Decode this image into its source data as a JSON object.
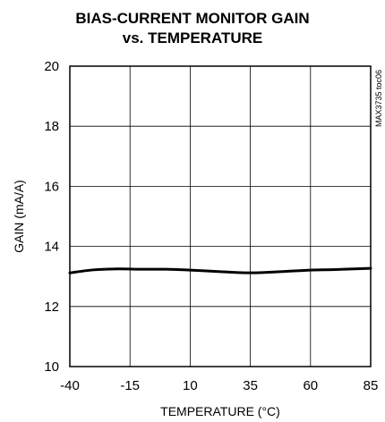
{
  "chart_data": {
    "type": "line",
    "title_line1": "BIAS-CURRENT MONITOR GAIN",
    "title_line2": "vs. TEMPERATURE",
    "xlabel": "TEMPERATURE (°C)",
    "ylabel": "GAIN (mA/A)",
    "side_label": "MAX3735 toc06",
    "xlim": [
      -40,
      85
    ],
    "ylim": [
      10,
      20
    ],
    "x_ticks": [
      -40,
      -15,
      10,
      35,
      60,
      85
    ],
    "y_ticks": [
      10,
      12,
      14,
      16,
      18,
      20
    ],
    "grid": true,
    "series": [
      {
        "x": [
          -40,
          -30,
          -20,
          -10,
          0,
          10,
          20,
          30,
          35,
          40,
          50,
          60,
          70,
          85
        ],
        "values": [
          13.12,
          13.22,
          13.25,
          13.24,
          13.24,
          13.21,
          13.17,
          13.13,
          13.12,
          13.13,
          13.17,
          13.21,
          13.23,
          13.27
        ]
      }
    ]
  }
}
